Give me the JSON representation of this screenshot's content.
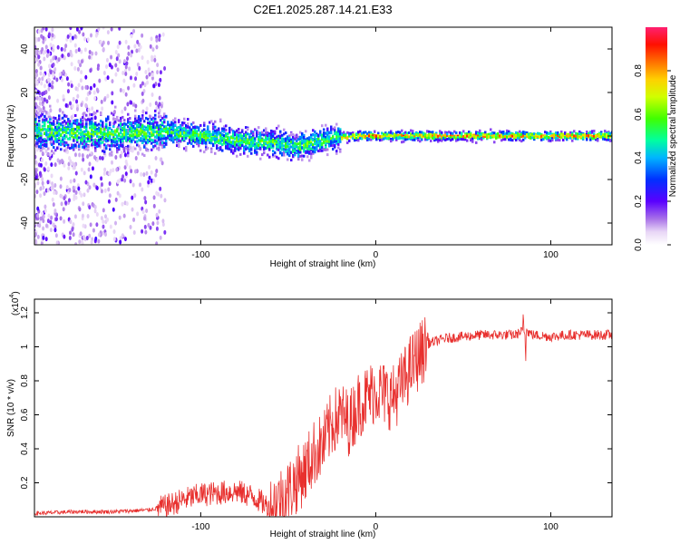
{
  "title": "C2E1.2025.287.14.21.E33",
  "chart_data": [
    {
      "type": "heatmap",
      "name": "spectrogram",
      "xlabel": "Height of straight line (km)",
      "ylabel": "Frequency (Hz)",
      "xlim": [
        -195,
        135
      ],
      "ylim": [
        -50,
        50
      ],
      "xticks": [
        -100,
        0,
        100
      ],
      "yticks": [
        -40,
        -20,
        0,
        20,
        40
      ],
      "colorbar": {
        "label": "Normalized spectral amplitude",
        "range": [
          0.0,
          1.0
        ],
        "ticks": [
          0.0,
          0.2,
          0.4,
          0.6,
          0.8
        ]
      },
      "band_centerline": [
        {
          "x": -190,
          "y": 2
        },
        {
          "x": -150,
          "y": 1
        },
        {
          "x": -120,
          "y": 2
        },
        {
          "x": -100,
          "y": 0
        },
        {
          "x": -80,
          "y": -2
        },
        {
          "x": -60,
          "y": -3
        },
        {
          "x": -45,
          "y": -5
        },
        {
          "x": -35,
          "y": -3
        },
        {
          "x": -25,
          "y": -1
        },
        {
          "x": -10,
          "y": 0
        },
        {
          "x": 0,
          "y": 0
        },
        {
          "x": 10,
          "y": 0
        },
        {
          "x": 30,
          "y": 0
        },
        {
          "x": 80,
          "y": 0
        },
        {
          "x": 135,
          "y": 0
        }
      ]
    },
    {
      "type": "line",
      "name": "snr",
      "xlabel": "Height of straight line (km)",
      "ylabel": "SNR (10 * v/v)",
      "multiplier": "(x10",
      "multiplier_exp": "4",
      "multiplier_close": ")",
      "color": "#e8302e",
      "xlim": [
        -195,
        135
      ],
      "ylim": [
        0,
        1.28
      ],
      "xticks": [
        -100,
        0,
        100
      ],
      "yticks": [
        0.2,
        0.4,
        0.6,
        0.8,
        1.0,
        1.2
      ],
      "x": [
        -195,
        -170,
        -150,
        -130,
        -120,
        -110,
        -100,
        -90,
        -80,
        -70,
        -60,
        -50,
        -40,
        -35,
        -30,
        -25,
        -20,
        -15,
        -10,
        -5,
        0,
        5,
        10,
        15,
        20,
        25,
        30,
        40,
        50,
        60,
        70,
        80,
        85,
        90,
        100,
        110,
        120,
        135
      ],
      "values": [
        0.02,
        0.03,
        0.03,
        0.04,
        0.06,
        0.1,
        0.13,
        0.14,
        0.15,
        0.12,
        0.05,
        0.15,
        0.28,
        0.38,
        0.42,
        0.55,
        0.6,
        0.55,
        0.66,
        0.7,
        0.75,
        0.72,
        0.7,
        0.78,
        0.88,
        0.95,
        1.02,
        1.05,
        1.06,
        1.07,
        1.07,
        1.07,
        1.1,
        1.07,
        1.06,
        1.07,
        1.07,
        1.07
      ]
    }
  ]
}
